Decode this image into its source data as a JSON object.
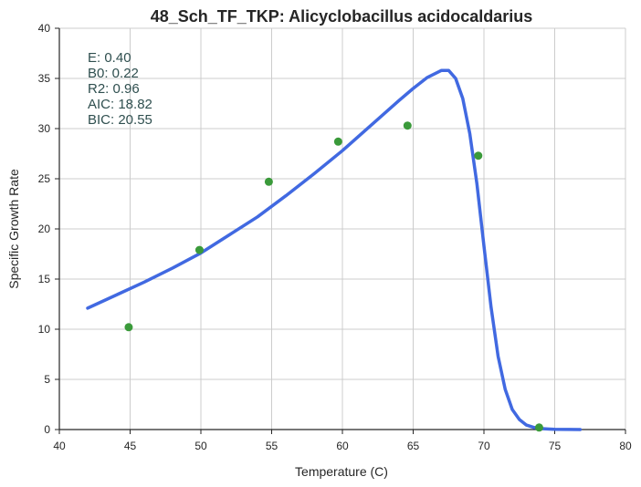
{
  "chart_data": {
    "type": "scatter",
    "title": "48_Sch_TF_TKP: Alicyclobacillus acidocaldarius",
    "xlabel": "Temperature (C)",
    "ylabel": "Specific Growth Rate",
    "xlim": [
      40,
      80
    ],
    "ylim": [
      0,
      40
    ],
    "xticks": [
      40,
      45,
      50,
      55,
      60,
      65,
      70,
      75,
      80
    ],
    "yticks": [
      0,
      5,
      10,
      15,
      20,
      25,
      30,
      35,
      40
    ],
    "grid": true,
    "stats": [
      {
        "label": "E:",
        "value": "0.40"
      },
      {
        "label": "B0:",
        "value": "0.22"
      },
      {
        "label": "R2:",
        "value": "0.96"
      },
      {
        "label": "AIC:",
        "value": "18.82"
      },
      {
        "label": "BIC:",
        "value": "20.55"
      }
    ],
    "points": {
      "color": "#3a9a3a",
      "x": [
        44.9,
        49.9,
        54.8,
        59.7,
        64.6,
        69.6,
        73.9
      ],
      "y": [
        10.2,
        17.9,
        24.7,
        28.7,
        30.3,
        27.3,
        0.2
      ]
    },
    "fit_curve": {
      "color": "#4169e1",
      "x": [
        42,
        44,
        46,
        48,
        50,
        52,
        54,
        56,
        58,
        60,
        62,
        64,
        65,
        66,
        67,
        67.5,
        68,
        68.5,
        69,
        69.5,
        70,
        70.5,
        71,
        71.5,
        72,
        72.5,
        73,
        73.5,
        74,
        74.5,
        75,
        76,
        76.8
      ],
      "y": [
        12.1,
        13.4,
        14.7,
        16.1,
        17.6,
        19.4,
        21.2,
        23.3,
        25.5,
        27.8,
        30.3,
        32.8,
        34.0,
        35.1,
        35.8,
        35.8,
        35.0,
        33.0,
        29.5,
        24.5,
        18.3,
        12.2,
        7.3,
        4.0,
        2.0,
        1.0,
        0.45,
        0.22,
        0.1,
        0.05,
        0.02,
        0.01,
        0.0
      ]
    }
  }
}
